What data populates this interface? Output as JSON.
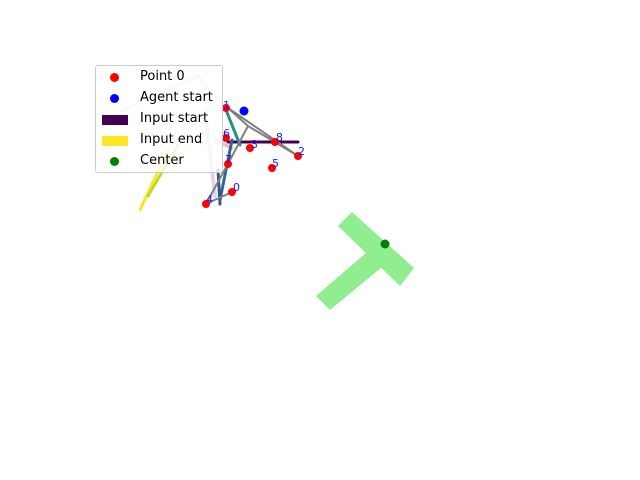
{
  "legend": {
    "point0": "Point 0",
    "agent_start": "Agent start",
    "input_start": "Input start",
    "input_end": "Input end",
    "center": "Center"
  },
  "colors": {
    "point": "#ff0000",
    "agent": "#0000ff",
    "center": "#008000",
    "input_start": "#440154",
    "input_end": "#fde725",
    "shape": "#90ee90",
    "label": "#1a1aff",
    "path": "#808080"
  },
  "point_labels": [
    "0",
    "1",
    "2",
    "3",
    "4",
    "5",
    "6",
    "7",
    "8"
  ]
}
